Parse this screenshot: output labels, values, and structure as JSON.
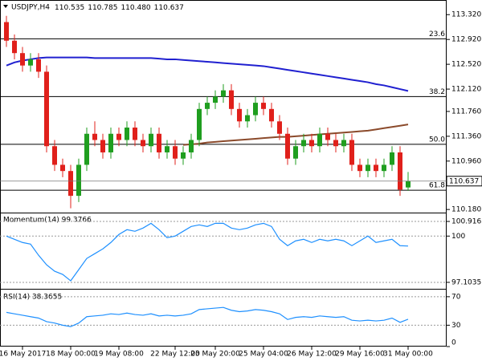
{
  "chart_data": {
    "type": "candlestick",
    "title": "USDJPY,H4",
    "header_values": [
      "110.535",
      "110.785",
      "110.480",
      "110.637"
    ],
    "categories": [
      null,
      null,
      "16 May 2017",
      null,
      null,
      null,
      null,
      null,
      "18 May 00:00",
      null,
      null,
      null,
      null,
      null,
      "19 May 08:00",
      null,
      null,
      null,
      null,
      null,
      null,
      "22 May 12:00",
      null,
      null,
      null,
      null,
      "23 May 20:00",
      null,
      null,
      null,
      null,
      null,
      "25 May 04:00",
      null,
      null,
      null,
      null,
      null,
      "26 May 12:00",
      null,
      null,
      null,
      null,
      null,
      "29 May 16:00",
      null,
      null,
      null,
      null,
      null,
      "31 May 00:00"
    ],
    "open": [
      113.2,
      112.9,
      112.7,
      112.5,
      112.6,
      112.4,
      111.2,
      110.9,
      110.8,
      110.4,
      110.9,
      111.4,
      111.3,
      111.1,
      111.4,
      111.3,
      111.5,
      111.3,
      111.2,
      111.4,
      111.1,
      111.2,
      111.0,
      111.1,
      111.3,
      111.8,
      111.9,
      112.0,
      112.1,
      111.8,
      111.6,
      111.7,
      111.9,
      111.8,
      111.6,
      111.4,
      111.0,
      111.2,
      111.3,
      111.2,
      111.4,
      111.3,
      111.2,
      111.3,
      110.9,
      110.8,
      110.9,
      110.8,
      110.9,
      111.1,
      110.535
    ],
    "high": [
      113.3,
      113.0,
      112.8,
      112.7,
      112.7,
      112.5,
      111.3,
      111.0,
      110.9,
      111.0,
      111.5,
      111.6,
      111.4,
      111.5,
      111.5,
      111.6,
      111.6,
      111.4,
      111.5,
      111.5,
      111.3,
      111.3,
      111.2,
      111.4,
      111.9,
      112.0,
      112.1,
      112.2,
      112.2,
      111.9,
      111.8,
      112.0,
      112.0,
      111.9,
      111.7,
      111.5,
      111.3,
      111.4,
      111.4,
      111.5,
      111.5,
      111.4,
      111.4,
      111.4,
      111.0,
      111.0,
      111.0,
      111.0,
      111.2,
      111.2,
      110.785
    ],
    "low": [
      112.8,
      112.6,
      112.4,
      112.4,
      112.3,
      111.1,
      110.8,
      110.7,
      110.2,
      110.3,
      110.8,
      111.2,
      111.0,
      111.0,
      111.2,
      111.2,
      111.2,
      111.1,
      111.1,
      111.0,
      111.0,
      110.9,
      110.9,
      111.0,
      111.2,
      111.7,
      111.8,
      111.9,
      111.7,
      111.5,
      111.5,
      111.6,
      111.7,
      111.5,
      111.3,
      110.9,
      110.9,
      111.1,
      111.1,
      111.1,
      111.2,
      111.1,
      111.1,
      110.8,
      110.7,
      110.7,
      110.7,
      110.7,
      110.8,
      110.4,
      110.48
    ],
    "close": [
      112.9,
      112.7,
      112.5,
      112.6,
      112.4,
      111.2,
      110.9,
      110.8,
      110.4,
      110.9,
      111.4,
      111.3,
      111.1,
      111.4,
      111.3,
      111.5,
      111.3,
      111.2,
      111.4,
      111.1,
      111.2,
      111.0,
      111.1,
      111.3,
      111.8,
      111.9,
      112.0,
      112.1,
      111.8,
      111.6,
      111.7,
      111.9,
      111.8,
      111.6,
      111.4,
      111.0,
      111.2,
      111.3,
      111.2,
      111.4,
      111.3,
      111.2,
      111.3,
      110.9,
      110.8,
      110.9,
      110.8,
      110.9,
      111.1,
      110.5,
      110.637
    ],
    "up_color": "#1f9e1f",
    "down_color": "#e0201b",
    "ylim": [
      110.13,
      113.53
    ],
    "yticks": [
      {
        "value": 113.32,
        "label": "113.320"
      },
      {
        "value": 112.92,
        "label": "112.920"
      },
      {
        "value": 112.52,
        "label": "112.520"
      },
      {
        "value": 112.12,
        "label": "112.120"
      },
      {
        "value": 111.76,
        "label": "111.760"
      },
      {
        "value": 111.36,
        "label": "111.360"
      },
      {
        "value": 110.96,
        "label": "110.960"
      },
      {
        "value": 110.18,
        "label": "110.180"
      }
    ],
    "overlays": [
      {
        "color": "#2020d0",
        "values": [
          112.5,
          112.55,
          112.58,
          112.6,
          112.62,
          112.63,
          112.63,
          112.63,
          112.63,
          112.63,
          112.63,
          112.62,
          112.62,
          112.62,
          112.62,
          112.62,
          112.62,
          112.62,
          112.62,
          112.61,
          112.6,
          112.6,
          112.59,
          112.58,
          112.57,
          112.56,
          112.55,
          112.54,
          112.53,
          112.52,
          112.51,
          112.5,
          112.49,
          112.47,
          112.45,
          112.43,
          112.41,
          112.39,
          112.37,
          112.35,
          112.33,
          112.31,
          112.29,
          112.27,
          112.25,
          112.23,
          112.2,
          112.18,
          112.15,
          112.12,
          112.09
        ]
      },
      {
        "color": "#8b4a2b",
        "values": [
          null,
          null,
          null,
          null,
          null,
          null,
          null,
          null,
          null,
          null,
          null,
          null,
          null,
          null,
          null,
          null,
          null,
          null,
          null,
          null,
          null,
          null,
          111.22,
          111.23,
          111.24,
          111.26,
          111.27,
          111.28,
          111.29,
          111.3,
          111.31,
          111.32,
          111.33,
          111.34,
          111.35,
          111.35,
          111.36,
          111.37,
          111.38,
          111.39,
          111.4,
          111.41,
          111.42,
          111.43,
          111.44,
          111.45,
          111.47,
          111.49,
          111.51,
          111.53,
          111.55
        ]
      }
    ],
    "fib_levels": [
      {
        "label": "23.6",
        "value": 112.93
      },
      {
        "label": "38.2",
        "value": 112.0
      },
      {
        "label": "50.0",
        "value": 111.23
      },
      {
        "label": "61.8",
        "value": 110.49
      }
    ],
    "momentum": {
      "title": "Momentum(14) 99.3766",
      "color": "#1e90ff",
      "values": [
        100.0,
        99.8,
        99.6,
        99.5,
        98.8,
        98.2,
        97.8,
        97.6,
        97.2,
        97.9,
        98.6,
        98.9,
        99.2,
        99.6,
        100.1,
        100.4,
        100.3,
        100.5,
        100.8,
        100.4,
        99.9,
        100.0,
        100.3,
        100.6,
        100.7,
        100.6,
        100.8,
        100.8,
        100.5,
        100.4,
        100.5,
        100.7,
        100.8,
        100.6,
        99.8,
        99.4,
        99.7,
        99.8,
        99.6,
        99.8,
        99.7,
        99.8,
        99.7,
        99.4,
        99.7,
        100.0,
        99.6,
        99.7,
        99.8,
        99.4,
        99.3766
      ],
      "ylim": [
        96.8,
        101.37
      ],
      "yticks": [
        100.9163,
        100,
        97.1035
      ]
    },
    "rsi": {
      "title": "RSI(14) 38.3655",
      "color": "#1e90ff",
      "values": [
        48,
        46,
        44,
        42,
        40,
        35,
        33,
        30,
        28,
        33,
        42,
        43,
        44,
        46,
        45,
        47,
        45,
        44,
        46,
        43,
        44,
        43,
        44,
        46,
        52,
        53,
        54,
        55,
        51,
        49,
        50,
        52,
        51,
        49,
        46,
        38,
        41,
        42,
        41,
        43,
        42,
        41,
        42,
        37,
        36,
        37,
        36,
        37,
        40,
        34,
        38.3655
      ],
      "ylim": [
        0,
        80
      ],
      "yticks": [
        70,
        30,
        0
      ]
    }
  }
}
